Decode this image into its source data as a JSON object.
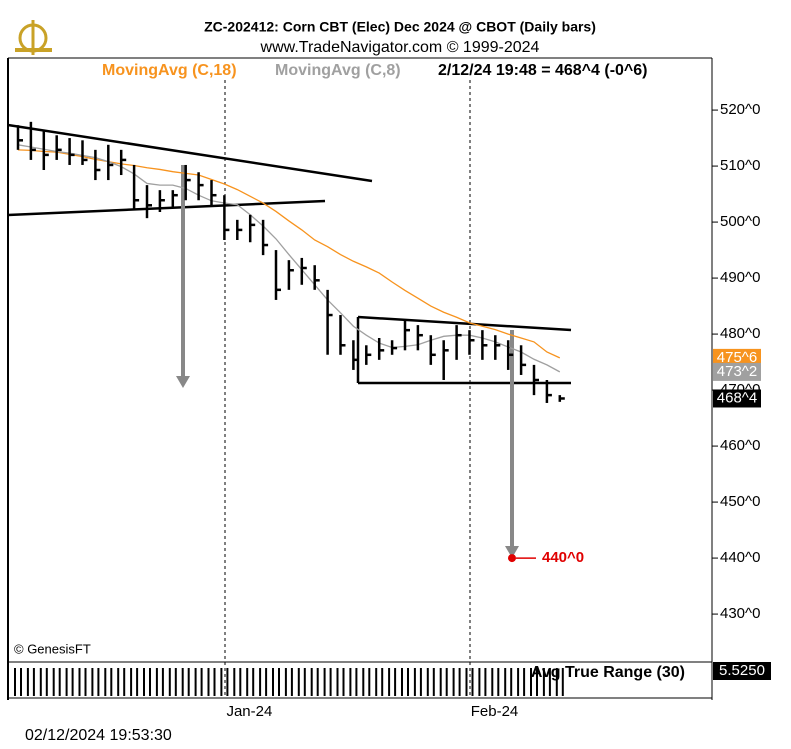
{
  "chart_data": {
    "type": "ohlc",
    "title": "ZC-202412:  Corn CBT (Elec) Dec 2024 @ CBOT  (Daily bars)",
    "subtitle": "www.TradeNavigator.com © 1999-2024",
    "status": "2/12/24 19:48 = 468^4 (-0^6)",
    "categories": [
      null,
      null,
      null,
      null,
      null,
      null,
      null,
      null,
      null,
      null,
      null,
      null,
      null,
      null,
      null,
      null,
      "Jan-24",
      null,
      null,
      null,
      null,
      null,
      null,
      null,
      null,
      null,
      null,
      null,
      null,
      null,
      null,
      null,
      null,
      null,
      null,
      "Feb-24",
      null,
      null,
      null,
      null,
      null,
      null,
      null
    ],
    "high": [
      517.3,
      517.9,
      516.4,
      515.5,
      515,
      514.6,
      512.9,
      513.8,
      512.9,
      510.2,
      506.6,
      505.7,
      505.7,
      510.2,
      508.9,
      507.5,
      504.8,
      500.4,
      501.3,
      500.4,
      495,
      493.2,
      493.6,
      492.3,
      487.9,
      483.4,
      478.9,
      478,
      479.3,
      478.9,
      482.5,
      481.6,
      479.8,
      478.9,
      481.6,
      480.7,
      480.7,
      479.8,
      478.9,
      478,
      474.5,
      471.8,
      469.1
    ],
    "low": [
      512.9,
      511.1,
      509.3,
      511.1,
      510.2,
      510.2,
      507.5,
      507.5,
      508.4,
      502.1,
      500.7,
      501.8,
      502.5,
      503.9,
      503.9,
      503,
      496.8,
      496.8,
      496.4,
      494.1,
      486.1,
      487.9,
      488.8,
      487.9,
      476.3,
      476.3,
      473.6,
      474.5,
      475.4,
      476.3,
      477.1,
      477.1,
      474.5,
      471.8,
      475.4,
      476.3,
      475.4,
      475.4,
      473.6,
      472.7,
      469.1,
      467.7,
      467.9
    ],
    "close": [
      514.6,
      512.9,
      512,
      512.9,
      512,
      511.1,
      509.3,
      510.2,
      511.1,
      503.9,
      503,
      503.9,
      504.8,
      507.5,
      506.6,
      504.8,
      498.6,
      498.6,
      499.5,
      495.9,
      487.9,
      491.4,
      491.8,
      489.6,
      483.4,
      478,
      475.4,
      476.3,
      477.1,
      477.5,
      480.7,
      479.8,
      476.3,
      477.1,
      479.8,
      478.9,
      478,
      478,
      476.3,
      474.5,
      471.8,
      469.1,
      468.5
    ],
    "series": [
      {
        "name": "MovingAvg (C,18)",
        "color": "#f7931e",
        "values": [
          512.9,
          512.8,
          512.6,
          512.5,
          512.1,
          511.7,
          511.2,
          510.8,
          510.4,
          510.1,
          509.7,
          509.4,
          509.0,
          508.7,
          508.4,
          507.6,
          506.8,
          505.8,
          504.6,
          503.4,
          501.9,
          500.2,
          498.6,
          496.8,
          495.6,
          494.2,
          493.0,
          492.0,
          490.9,
          489.3,
          487.8,
          486.4,
          485.0,
          483.9,
          483.0,
          482.0,
          481.4,
          480.8,
          480.0,
          479.3,
          478.6,
          476.8,
          475.75
        ]
      },
      {
        "name": "MovingAvg (C,8)",
        "color": "#a0a0a0",
        "values": [
          513.8,
          513.4,
          513.0,
          512.6,
          512.3,
          511.9,
          511.5,
          510.8,
          509.9,
          508.6,
          506.9,
          506.6,
          506.6,
          506.0,
          504.8,
          503.8,
          503.4,
          503.1,
          501.3,
          499.3,
          497.0,
          494.2,
          491.5,
          488.8,
          486.1,
          483.8,
          481.4,
          479.8,
          478.4,
          477.6,
          477.8,
          478.1,
          478.9,
          479.6,
          479.8,
          479.8,
          479.3,
          478.6,
          477.7,
          476.8,
          475.5,
          474.5,
          473.25
        ]
      }
    ],
    "price_tags": [
      {
        "label": "475^6",
        "value": 475.75,
        "color": "#f7931e"
      },
      {
        "label": "473^2",
        "value": 473.25,
        "color": "#a0a0a0"
      },
      {
        "label": "468^4",
        "value": 468.5,
        "color": "#000000"
      }
    ],
    "target": {
      "label": "440^0",
      "value": 440
    },
    "ylim": [
      421.8,
      529.3
    ],
    "yticks": [
      {
        "value": 430,
        "label": "430^0"
      },
      {
        "value": 440,
        "label": "440^0"
      },
      {
        "value": 450,
        "label": "450^0"
      },
      {
        "value": 460,
        "label": "460^0"
      },
      {
        "value": 470,
        "label": "470^0"
      },
      {
        "value": 480,
        "label": "480^0"
      },
      {
        "value": 490,
        "label": "490^0"
      },
      {
        "value": 500,
        "label": "500^0"
      },
      {
        "value": 510,
        "label": "510^0"
      },
      {
        "value": 520,
        "label": "520^0"
      }
    ],
    "indicator": {
      "name": "Avg True Range (30)",
      "last_label": "5.5250"
    },
    "watermark": "© GenesisFT",
    "timestamp": "02/12/2024 19:53:30"
  }
}
